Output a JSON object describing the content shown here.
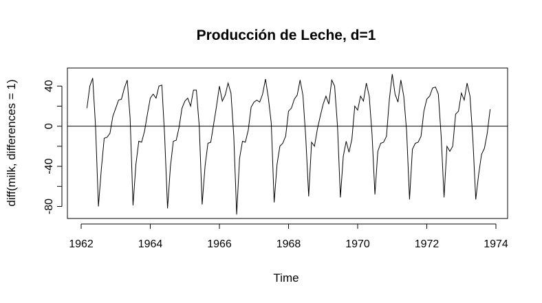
{
  "chart_data": {
    "type": "line",
    "title": "Producción de Leche, d=1",
    "xlabel": "Time",
    "ylabel": "diff(milk, differences = 1)",
    "xlim": [
      1962.0,
      1974.0
    ],
    "ylim": [
      -92,
      58
    ],
    "x_ticks": [
      1962,
      1964,
      1966,
      1968,
      1970,
      1972,
      1974
    ],
    "y_ticks": [
      -80,
      -40,
      0,
      40
    ],
    "y_minor_ticks": [
      -60,
      -20,
      20
    ],
    "hline": 0,
    "frequency": 12,
    "series": [
      {
        "start": 1962.1667,
        "values": [
          18,
          40,
          48,
          0,
          -80,
          -43,
          -12,
          -11,
          -7,
          10,
          18,
          26,
          27,
          38,
          46,
          8,
          -79,
          -38,
          -15,
          -16,
          -5,
          12,
          28,
          32,
          28,
          40,
          41,
          -10,
          -82,
          -40,
          -15,
          -14,
          -1,
          18,
          25,
          28,
          20,
          36,
          36,
          0,
          -78,
          -40,
          -17,
          -16,
          2,
          20,
          40,
          25,
          31,
          43,
          33,
          -10,
          -88,
          -32,
          -15,
          -16,
          -4,
          19,
          24,
          26,
          24,
          32,
          47,
          28,
          3,
          -76,
          -38,
          -20,
          -17,
          -10,
          15,
          18,
          27,
          31,
          46,
          31,
          -12,
          -70,
          -16,
          -20,
          -3,
          10,
          22,
          30,
          22,
          46,
          40,
          0,
          -71,
          -30,
          -15,
          -26,
          -13,
          20,
          16,
          30,
          25,
          43,
          30,
          -8,
          -68,
          -25,
          -17,
          -16,
          -10,
          27,
          52,
          32,
          24,
          46,
          30,
          -5,
          -73,
          -23,
          -17,
          -16,
          -10,
          15,
          27,
          30,
          38,
          39,
          32,
          -10,
          -71,
          -20,
          -25,
          -20,
          12,
          15,
          33,
          26,
          43,
          30,
          -13,
          -73,
          -48,
          -28,
          -22,
          -7,
          17
        ]
      }
    ]
  }
}
